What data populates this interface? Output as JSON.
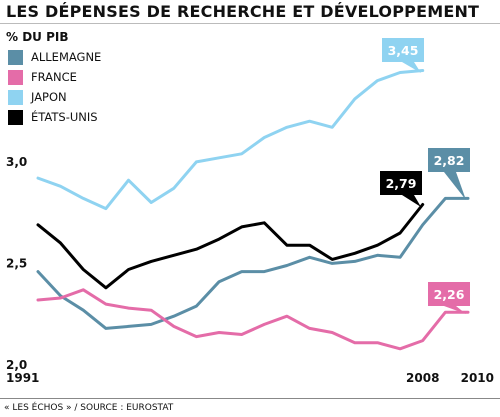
{
  "header": {
    "title": "LES DÉPENSES DE RECHERCHE ET DÉVELOPPEMENT",
    "unit": "% DU PIB"
  },
  "legend": [
    {
      "label": "ALLEMAGNE",
      "color": "#5b8ea6"
    },
    {
      "label": "FRANCE",
      "color": "#e46ca8"
    },
    {
      "label": "JAPON",
      "color": "#8fd3f1"
    },
    {
      "label": "ÉTATS-UNIS",
      "color": "#000000"
    }
  ],
  "footer": {
    "source": "« LES ÉCHOS » / SOURCE : EUROSTAT"
  },
  "chart_data": {
    "type": "line",
    "title": "LES DÉPENSES DE RECHERCHE ET DÉVELOPPEMENT",
    "ylabel": "% DU PIB",
    "x": [
      1991,
      1992,
      1993,
      1994,
      1995,
      1996,
      1997,
      1998,
      1999,
      2000,
      2001,
      2002,
      2003,
      2004,
      2005,
      2006,
      2007,
      2008,
      2009,
      2010
    ],
    "ylim": [
      2.0,
      3.6
    ],
    "yticks": [
      "2,0",
      "2,5",
      "3,0"
    ],
    "ytick_values": [
      2.0,
      2.5,
      3.0
    ],
    "xtick_labels": [
      "1991",
      "2008",
      "2010"
    ],
    "xtick_values": [
      1991,
      2008,
      2010
    ],
    "grid": false,
    "legend_position": "top-left",
    "series": [
      {
        "name": "ALLEMAGNE",
        "color": "#5b8ea6",
        "x": [
          1991,
          1992,
          1993,
          1994,
          1995,
          1996,
          1997,
          1998,
          1999,
          2000,
          2001,
          2002,
          2003,
          2004,
          2005,
          2006,
          2007,
          2008,
          2009,
          2010
        ],
        "values": [
          2.46,
          2.34,
          2.27,
          2.18,
          2.19,
          2.2,
          2.24,
          2.29,
          2.41,
          2.46,
          2.46,
          2.49,
          2.53,
          2.5,
          2.51,
          2.54,
          2.53,
          2.69,
          2.82,
          2.82
        ],
        "end_label": "2,82"
      },
      {
        "name": "FRANCE",
        "color": "#e46ca8",
        "x": [
          1991,
          1992,
          1993,
          1994,
          1995,
          1996,
          1997,
          1998,
          1999,
          2000,
          2001,
          2002,
          2003,
          2004,
          2005,
          2006,
          2007,
          2008,
          2009,
          2010
        ],
        "values": [
          2.32,
          2.33,
          2.37,
          2.3,
          2.28,
          2.27,
          2.19,
          2.14,
          2.16,
          2.15,
          2.2,
          2.24,
          2.18,
          2.16,
          2.11,
          2.11,
          2.08,
          2.12,
          2.26,
          2.26
        ],
        "end_label": "2,26"
      },
      {
        "name": "JAPON",
        "color": "#8fd3f1",
        "x": [
          1991,
          1992,
          1993,
          1994,
          1995,
          1996,
          1997,
          1998,
          1999,
          2000,
          2001,
          2002,
          2003,
          2004,
          2005,
          2006,
          2007,
          2008
        ],
        "values": [
          2.92,
          2.88,
          2.82,
          2.77,
          2.91,
          2.8,
          2.87,
          3.0,
          3.02,
          3.04,
          3.12,
          3.17,
          3.2,
          3.17,
          3.31,
          3.4,
          3.44,
          3.45
        ],
        "end_label": "3,45"
      },
      {
        "name": "ÉTATS-UNIS",
        "color": "#000000",
        "x": [
          1991,
          1992,
          1993,
          1994,
          1995,
          1996,
          1997,
          1998,
          1999,
          2000,
          2001,
          2002,
          2003,
          2004,
          2005,
          2006,
          2007,
          2008
        ],
        "values": [
          2.69,
          2.6,
          2.47,
          2.38,
          2.47,
          2.51,
          2.54,
          2.57,
          2.62,
          2.68,
          2.7,
          2.59,
          2.59,
          2.52,
          2.55,
          2.59,
          2.65,
          2.79
        ],
        "end_label": "2,79"
      }
    ]
  }
}
